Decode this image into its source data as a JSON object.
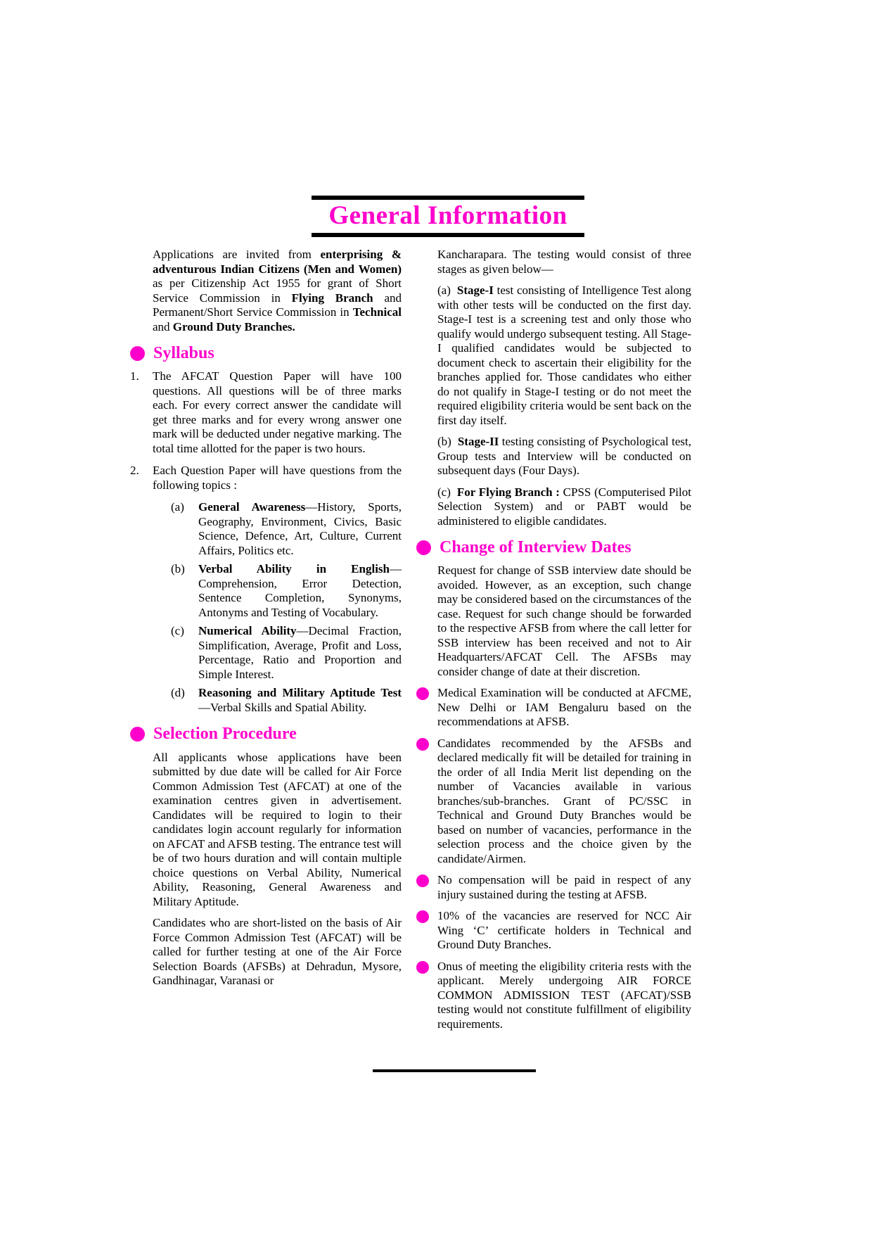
{
  "accent_color": "#ff00cc",
  "title": "General Information",
  "left": {
    "intro": [
      {
        "t": "Applications are invited from "
      },
      {
        "t": "enterprising & adventurous Indian Citizens (Men and Women)"
      },
      {
        "t": " as per Citizenship Act 1955 for grant of Short Service Commission in "
      },
      {
        "t": "Flying Branch"
      },
      {
        "t": " and Permanent/Short Service Commission in "
      },
      {
        "t": "Technical"
      },
      {
        "t": " and "
      },
      {
        "t": "Ground Duty Branches."
      }
    ],
    "syllabus": {
      "heading": "Syllabus",
      "items": [
        {
          "num": "1.",
          "text": "The AFCAT Question Paper will have 100 questions. All questions will be of three marks each. For every correct answer the candidate will get three marks and for every wrong answer one mark will be deducted under negative marking. The total time allotted for the paper is two hours."
        },
        {
          "num": "2.",
          "text": "Each Question Paper will have questions from the following topics :"
        }
      ],
      "topics": [
        {
          "label": "(a)",
          "bold": "General Awareness",
          "text": "—History, Sports, Geography, Environment, Civics, Basic Science, Defence, Art, Culture, Current Affairs, Politics etc."
        },
        {
          "label": "(b)",
          "bold": "Verbal Ability in English",
          "text": "—Comprehension, Error Detection, Sentence Completion, Synonyms, Antonyms and Testing of Vocabulary."
        },
        {
          "label": "(c)",
          "bold": "Numerical Ability",
          "text": "—Decimal Fraction, Simplification, Average, Profit and Loss, Percentage, Ratio and Proportion and Simple Interest."
        },
        {
          "label": "(d)",
          "bold": "Reasoning and Military Aptitude Test",
          "text": "—Verbal Skills and Spatial Ability."
        }
      ]
    },
    "selection": {
      "heading": "Selection Procedure",
      "para1": "All applicants whose applications have been submitted by due date will be called for Air Force Common Admission Test (AFCAT) at one of the examination centres given in advertisement. Candidates will be required to login to their candidates login account regularly for information on AFCAT and AFSB testing. The entrance test will be of two hours duration and will contain multiple choice questions on Verbal Ability, Numerical Ability, Reasoning, General Awareness and Military Aptitude.",
      "para2": "Candidates who are short-listed on the basis of Air Force Common Admission Test (AFCAT) will be called for further testing at one of the Air Force Selection Boards (AFSBs) at Dehradun, Mysore, Gandhinagar, Varanasi or"
    }
  },
  "right": {
    "continuation": "Kancharapara. The testing would consist of three stages as given below—",
    "stages": [
      {
        "label": "(a)",
        "bold": "Stage-I",
        "text": " test consisting of Intelligence Test along with other tests will be conducted on the first day. Stage-I test is a screening test and only those who qualify would undergo subsequent testing. All Stage-I qualified candidates would be subjected to document check to ascertain their eligibility for the branches applied for. Those candidates who either do not qualify in Stage-I testing or do not meet the required eligibility criteria would be sent back on the first day itself."
      },
      {
        "label": "(b)",
        "bold": "Stage-II",
        "text": " testing consisting of Psychological test, Group tests and Interview will be conducted on subsequent days (Four Days)."
      },
      {
        "label": "(c)",
        "bold": "For Flying Branch :",
        "text": " CPSS (Computerised Pilot Selection System) and or PABT would be administered to eligible candidates."
      }
    ],
    "interview": {
      "heading": "Change of Interview Dates",
      "para": "Request for change of SSB interview date should be avoided. However, as an exception, such change may be considered based on the circumstances of the case. Request for such change should be forwarded to the respective AFSB from where the call letter for SSB interview has been received and not to Air Headquarters/AFCAT Cell. The AFSBs may consider change of date at their discretion."
    },
    "bullets": [
      "Medical Examination will be conducted at AFCME, New Delhi or IAM Bengaluru based on the recommendations at AFSB.",
      "Candidates recommended by the AFSBs and declared medically fit will be detailed for training in the order of all India Merit list depending on the number of Vacancies available in various branches/sub-branches. Grant of PC/SSC in Technical and Ground Duty Branches would be based on number of vacancies, performance in the selection process and the choice given by the candidate/Airmen.",
      "No compensation will be paid in respect of any injury sustained during the testing at AFSB.",
      "10% of the vacancies are reserved for NCC Air Wing ‘C’ certificate holders in Technical and Ground Duty Branches.",
      "Onus of meeting the eligibility criteria rests with the applicant. Merely undergoing AIR FORCE COMMON ADMISSION TEST (AFCAT)/SSB testing would not constitute fulfillment of eligibility requirements."
    ]
  }
}
